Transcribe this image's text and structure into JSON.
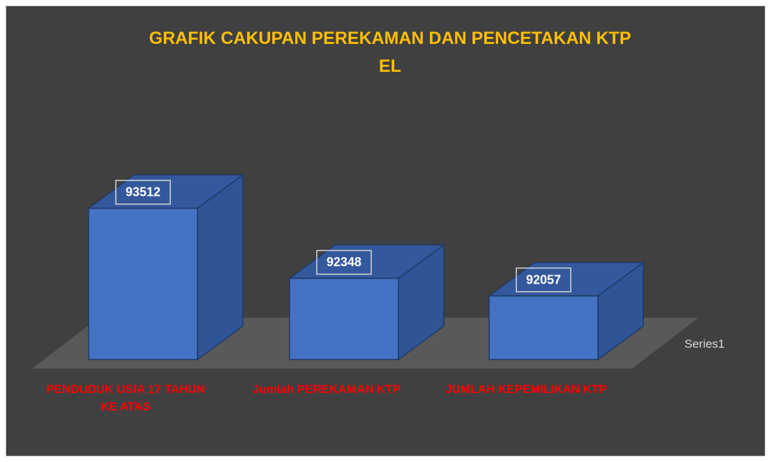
{
  "chart_data": {
    "type": "bar3d",
    "title": "GRAFIK CAKUPAN PEREKAMAN DAN PENCETAKAN KTP EL",
    "categories": [
      "PENDUDUK USIA 17 TAHUN KE ATAS",
      "Jumlah PEREKAMAN KTP",
      "JUMLAH KEPEMILIKAN KTP"
    ],
    "series": [
      {
        "name": "Series1",
        "color": "#4472c4",
        "values": [
          93512,
          92348,
          92057
        ]
      }
    ],
    "ylim": [
      91000,
      93800
    ]
  }
}
